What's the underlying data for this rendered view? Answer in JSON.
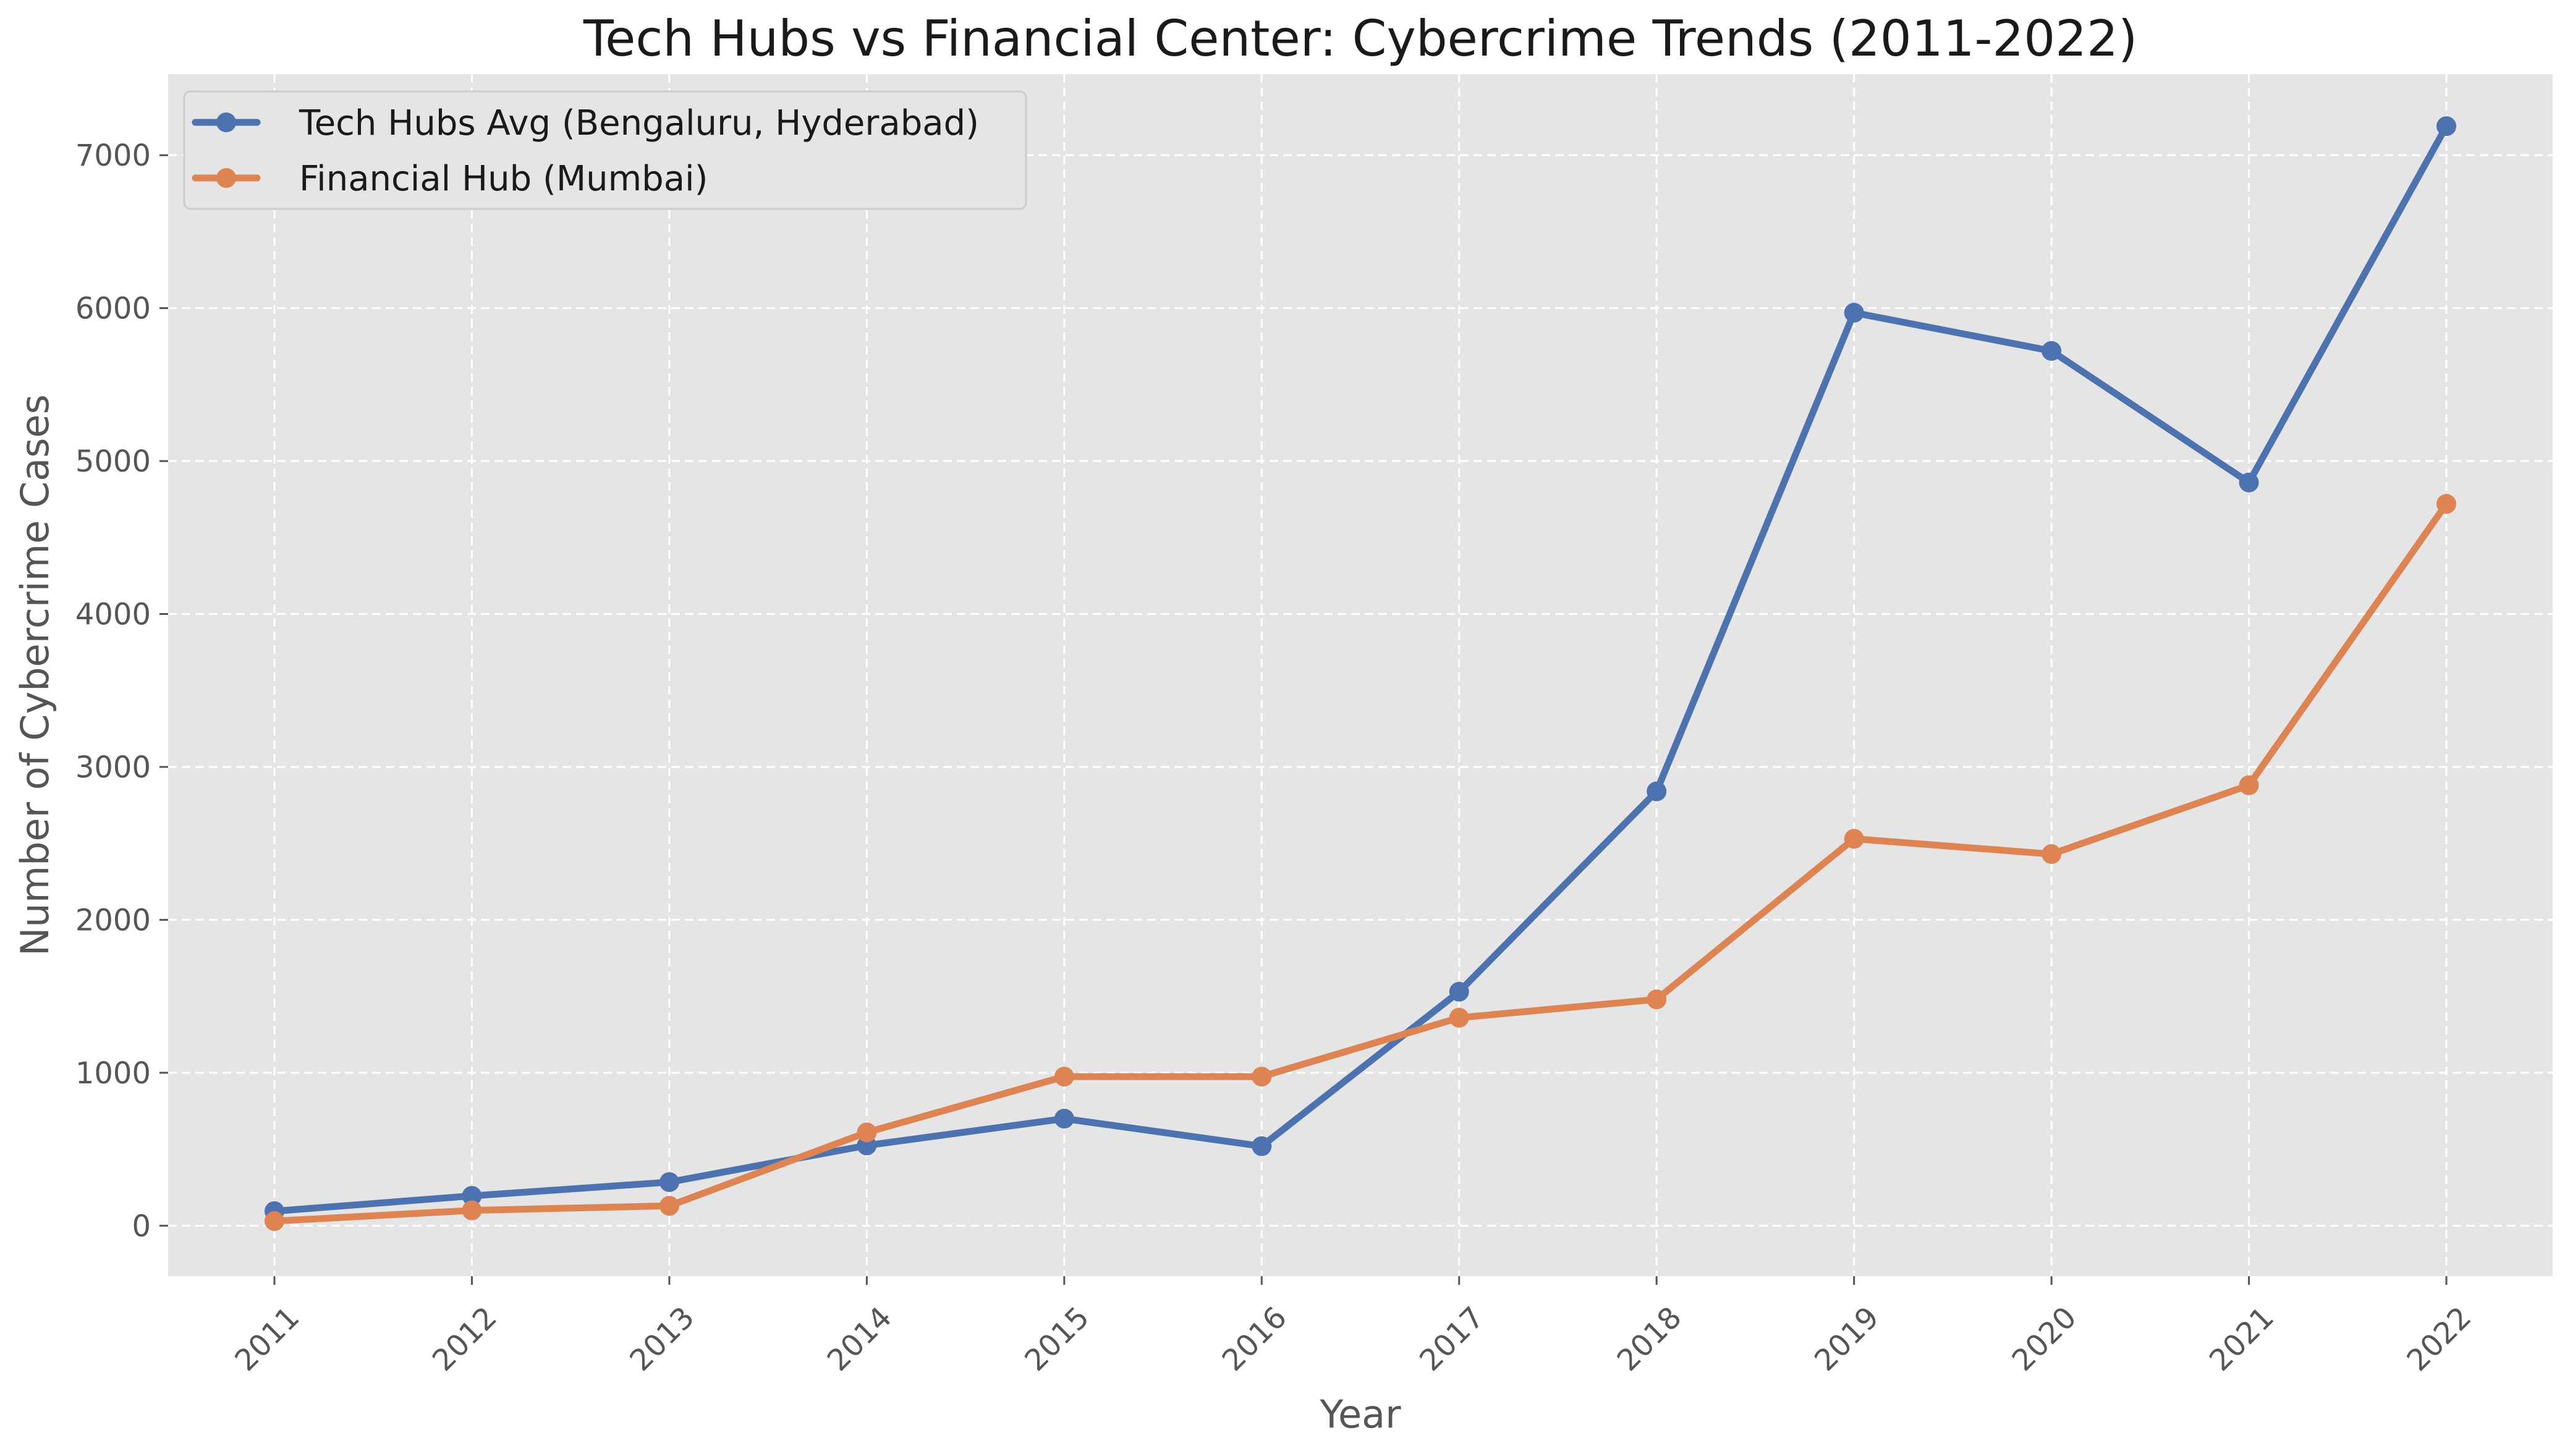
{
  "chart_data": {
    "type": "line",
    "title": "Tech Hubs vs Financial Center: Cybercrime Trends (2011-2022)",
    "xlabel": "Year",
    "ylabel": "Number of Cybercrime Cases",
    "categories": [
      "2011",
      "2012",
      "2013",
      "2014",
      "2015",
      "2016",
      "2017",
      "2018",
      "2019",
      "2020",
      "2021",
      "2022"
    ],
    "y_ticks": [
      "0",
      "1000",
      "2000",
      "3000",
      "4000",
      "5000",
      "6000",
      "7000"
    ],
    "ylim": [
      -330,
      7530
    ],
    "grid": true,
    "legend_position": "top-left",
    "background": "#e5e5e5",
    "series": [
      {
        "name": "Tech Hubs Avg (Bengaluru, Hyderabad)",
        "color": "#4c72b0",
        "values": [
          95,
          195,
          285,
          525,
          700,
          520,
          1530,
          2840,
          5970,
          5720,
          4860,
          7190
        ]
      },
      {
        "name": "Financial Hub (Mumbai)",
        "color": "#dd8452",
        "values": [
          30,
          100,
          130,
          610,
          975,
          975,
          1360,
          1480,
          2530,
          2430,
          2880,
          4720
        ]
      }
    ]
  }
}
